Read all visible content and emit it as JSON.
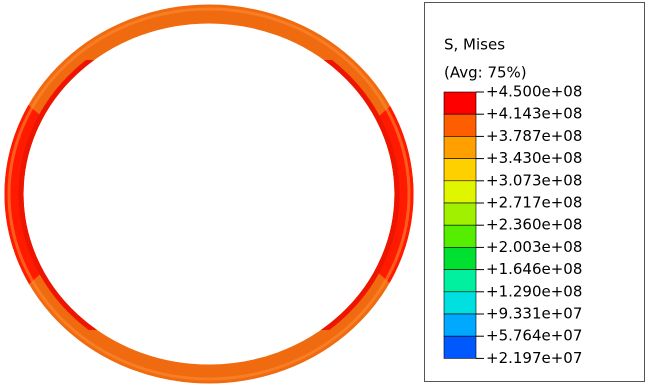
{
  "legend": {
    "title": "S, Mises",
    "subtitle": "(Avg: 75%)",
    "labels": [
      "+4.500e+08",
      "+4.143e+08",
      "+3.787e+08",
      "+3.430e+08",
      "+3.073e+08",
      "+2.717e+08",
      "+2.360e+08",
      "+2.003e+08",
      "+1.646e+08",
      "+1.290e+08",
      "+9.331e+07",
      "+5.764e+07",
      "+2.197e+07"
    ],
    "colors": [
      "#ff0000",
      "#ff5e00",
      "#ffa000",
      "#ffd000",
      "#e0f500",
      "#a0f000",
      "#55ee00",
      "#00e030",
      "#00f0a0",
      "#00e0e0",
      "#00a8ff",
      "#0058ff",
      "#0000ff"
    ]
  }
}
